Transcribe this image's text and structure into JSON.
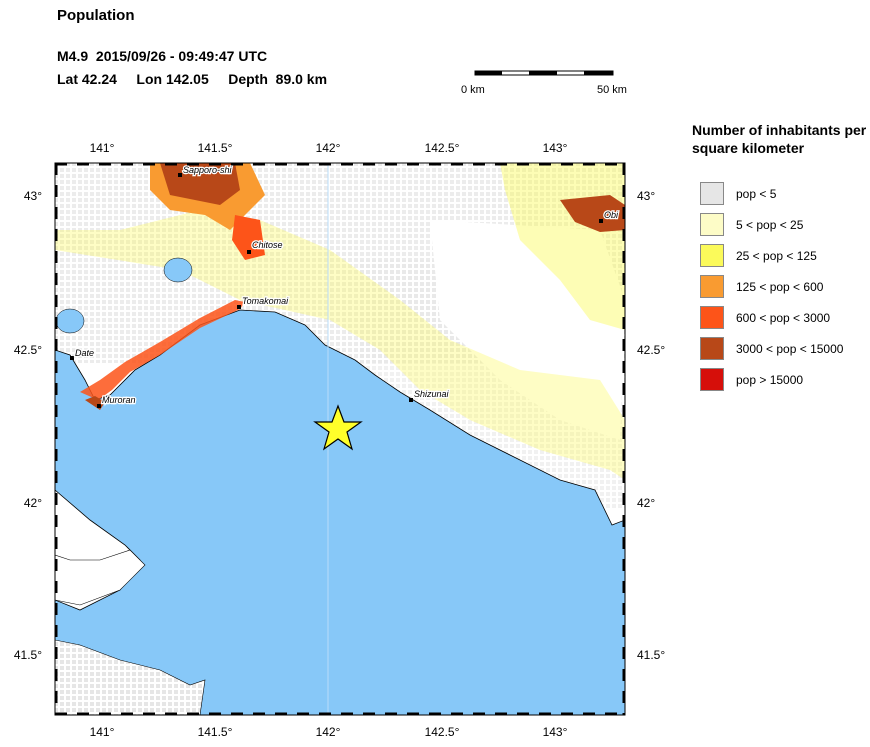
{
  "header": {
    "title": "Population",
    "magnitude": "M4.9",
    "datetime": "2015/09/26 - 09:49:47 UTC",
    "lat_label": "Lat",
    "lat": "42.24",
    "lon_label": "Lon",
    "lon": "142.05",
    "depth_label": "Depth",
    "depth": "89.0 km"
  },
  "scale_bar": {
    "start_label": "0 km",
    "end_label": "50 km"
  },
  "map": {
    "lon_ticks": [
      "141°",
      "141.5°",
      "142°",
      "142.5°",
      "143°"
    ],
    "lat_ticks": [
      "43°",
      "42.5°",
      "42°",
      "41.5°"
    ],
    "epicenter": {
      "lat": 42.24,
      "lon": 142.05,
      "color": "#ffff2a"
    },
    "water_color": "#87c8f8",
    "cities": [
      "Sapporo-shi",
      "Chitose",
      "Tomakomai",
      "Date",
      "Muroran",
      "Shizunai",
      "Obi"
    ]
  },
  "legend": {
    "title": "Number of inhabitants per square kilometer",
    "items": [
      {
        "label": "pop < 5",
        "color": "#e6e6e6"
      },
      {
        "label": "5 < pop < 25",
        "color": "#fdfcc7"
      },
      {
        "label": "25 < pop < 125",
        "color": "#fbfa5a"
      },
      {
        "label": "125 < pop < 600",
        "color": "#f99b31"
      },
      {
        "label": "600 < pop < 3000",
        "color": "#fd5419"
      },
      {
        "label": "3000 < pop < 15000",
        "color": "#b84818"
      },
      {
        "label": "pop > 15000",
        "color": "#d60f0a"
      }
    ]
  }
}
